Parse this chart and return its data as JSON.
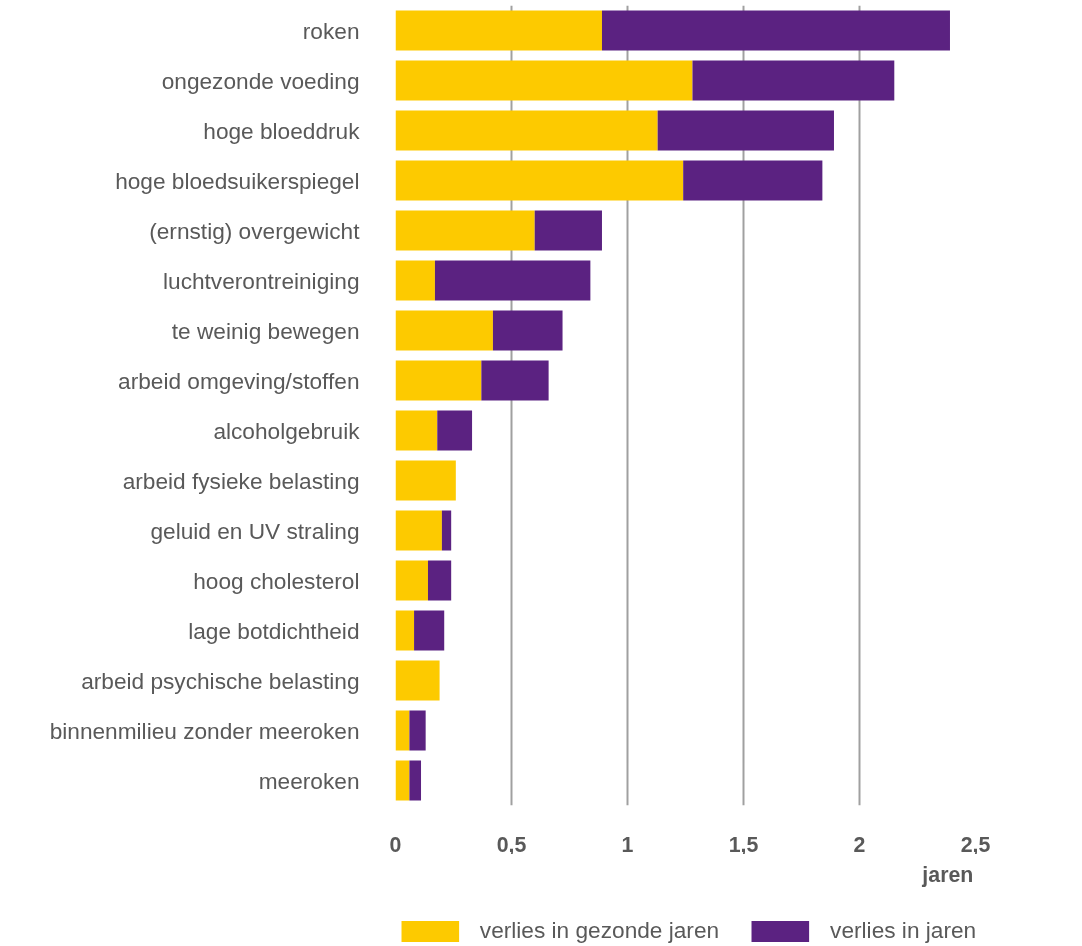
{
  "chart_data": {
    "type": "bar",
    "orientation": "horizontal",
    "stacked": true,
    "xlabel": "jaren",
    "categories": [
      "roken",
      "ongezonde voeding",
      "hoge bloeddruk",
      "hoge bloedsuikerspiegel",
      "(ernstig) overgewicht",
      "luchtverontreiniging",
      "te weinig bewegen",
      "arbeid omgeving/stoffen",
      "alcoholgebruik",
      "arbeid fysieke belasting",
      "geluid en UV straling",
      "hoog cholesterol",
      "lage botdichtheid",
      "arbeid psychische belasting",
      "binnenmilieu zonder meeroken",
      "meeroken"
    ],
    "series": [
      {
        "name": "verlies in gezonde jaren",
        "color": "#fdca00",
        "values": [
          0.89,
          1.28,
          1.13,
          1.24,
          0.6,
          0.17,
          0.42,
          0.37,
          0.18,
          0.26,
          0.2,
          0.14,
          0.08,
          0.19,
          0.06,
          0.06
        ]
      },
      {
        "name": "verlies in jaren",
        "color": "#5b2281",
        "values": [
          1.5,
          0.87,
          0.76,
          0.6,
          0.29,
          0.67,
          0.3,
          0.29,
          0.15,
          null,
          0.04,
          0.1,
          0.13,
          null,
          0.07,
          0.05
        ]
      }
    ],
    "xlim": [
      0,
      2.5
    ],
    "xticks": [
      0,
      {
        "value": 0.5,
        "label": "0,5"
      },
      1,
      {
        "value": 1.5,
        "label": "1,5"
      },
      2,
      {
        "value": 2.5,
        "label": "2,5"
      }
    ],
    "grid": "x",
    "legend": "bottom"
  }
}
